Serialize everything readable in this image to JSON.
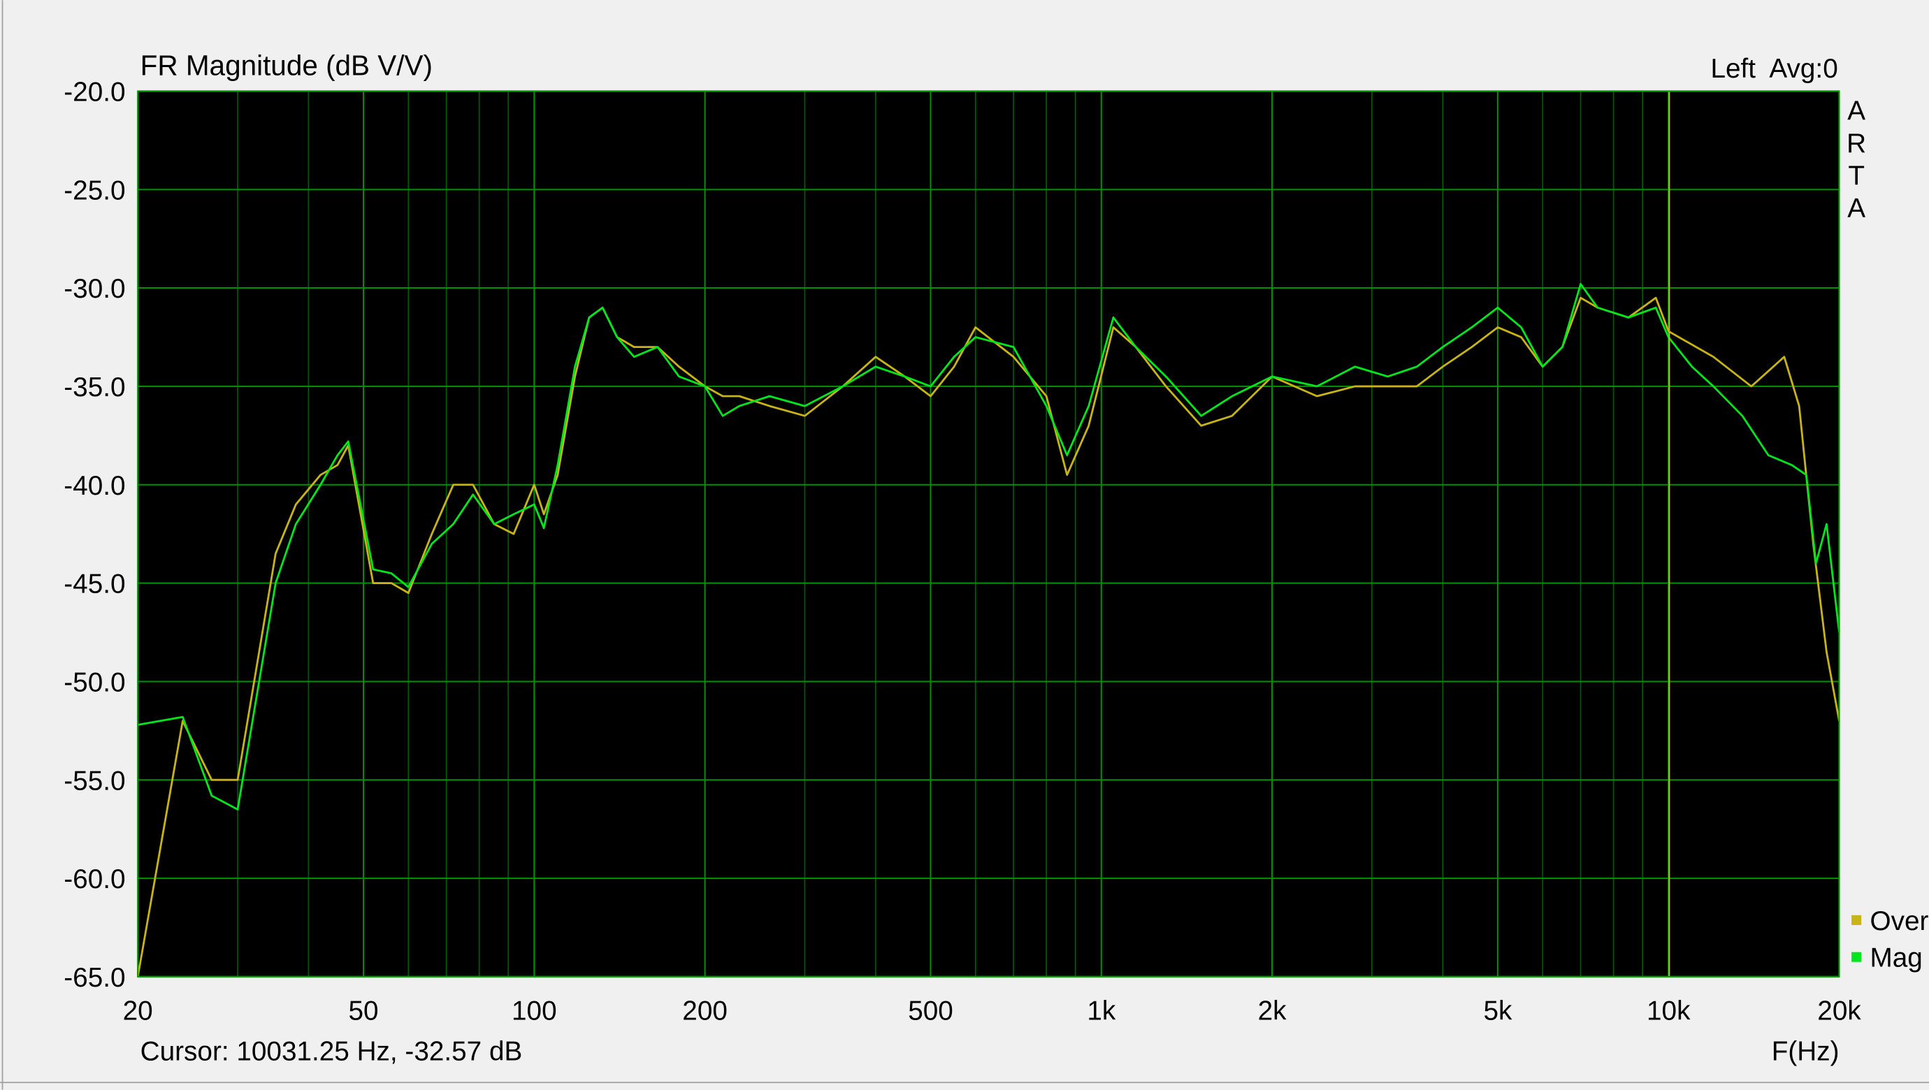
{
  "chart_data": {
    "type": "line",
    "title": "FR Magnitude (dB V/V)",
    "channel_info": "Left  Avg:0",
    "branding": "ARTA",
    "x_label": "F(Hz)",
    "cursor": {
      "value": 10031.25,
      "label": "Cursor: 10031.25 Hz, -32.57 dB"
    },
    "xscale": "log",
    "grid": true,
    "legend": "bottom-right",
    "xlim": [
      20,
      20000
    ],
    "ylim": [
      -65,
      -20
    ],
    "xticks": [
      20,
      50,
      100,
      200,
      500,
      {
        "value": 1000,
        "label": "1k"
      },
      {
        "value": 2000,
        "label": "2k"
      },
      {
        "value": 5000,
        "label": "5k"
      },
      {
        "value": 10000,
        "label": "10k"
      },
      {
        "value": 20000,
        "label": "20k"
      }
    ],
    "xminor": [
      30,
      40,
      60,
      70,
      80,
      90,
      300,
      400,
      600,
      700,
      800,
      900,
      3000,
      4000,
      6000,
      7000,
      8000,
      9000
    ],
    "yticks": [
      {
        "value": -20,
        "label": "-20.0"
      },
      {
        "value": -25,
        "label": "-25.0"
      },
      {
        "value": -30,
        "label": "-30.0"
      },
      {
        "value": -35,
        "label": "-35.0"
      },
      {
        "value": -40,
        "label": "-40.0"
      },
      {
        "value": -45,
        "label": "-45.0"
      },
      {
        "value": -50,
        "label": "-50.0"
      },
      {
        "value": -55,
        "label": "-55.0"
      },
      {
        "value": -60,
        "label": "-60.0"
      },
      {
        "value": -65,
        "label": "-65.0"
      }
    ],
    "series": [
      {
        "name": "Over",
        "color": "#c8b414",
        "x": [
          20,
          24,
          27,
          30,
          35,
          38,
          42,
          45,
          47,
          52,
          56,
          60,
          66,
          72,
          78,
          85,
          92,
          100,
          104,
          110,
          118,
          125,
          132,
          140,
          150,
          165,
          180,
          200,
          215,
          230,
          260,
          300,
          350,
          400,
          450,
          500,
          550,
          600,
          700,
          800,
          870,
          950,
          1050,
          1150,
          1300,
          1500,
          1700,
          2000,
          2400,
          2800,
          3200,
          3600,
          4000,
          4500,
          5000,
          5500,
          6000,
          6500,
          7000,
          7500,
          8500,
          9500,
          10000,
          12000,
          14000,
          16000,
          17000,
          18000,
          19000,
          20000
        ],
        "values": [
          -65,
          -52,
          -55,
          -55,
          -43.5,
          -41,
          -39.5,
          -39,
          -38,
          -45,
          -45,
          -45.5,
          -42.5,
          -40,
          -40,
          -42,
          -42.5,
          -40,
          -41.5,
          -39.5,
          -34.5,
          -31.5,
          -31,
          -32.5,
          -33,
          -33,
          -34,
          -35,
          -35.5,
          -35.5,
          -36,
          -36.5,
          -35,
          -33.5,
          -34.5,
          -35.5,
          -34,
          -32,
          -33.5,
          -35.5,
          -39.5,
          -37,
          -32,
          -33,
          -35,
          -37,
          -36.5,
          -34.5,
          -35.5,
          -35,
          -35,
          -35,
          -34,
          -33,
          -32,
          -32.5,
          -34,
          -33,
          -30.5,
          -31,
          -31.5,
          -30.5,
          -32.2,
          -33.5,
          -35,
          -33.5,
          -36,
          -43,
          -48.5,
          -52
        ]
      },
      {
        "name": "Mag",
        "color": "#00e61e",
        "x": [
          20,
          24,
          27,
          30,
          35,
          38,
          42,
          45,
          47,
          52,
          56,
          60,
          66,
          72,
          78,
          85,
          92,
          100,
          104,
          110,
          118,
          125,
          132,
          140,
          150,
          165,
          180,
          200,
          215,
          230,
          260,
          300,
          350,
          400,
          450,
          500,
          550,
          600,
          700,
          800,
          870,
          950,
          1050,
          1150,
          1300,
          1500,
          1700,
          2000,
          2400,
          2800,
          3200,
          3600,
          4000,
          4500,
          5000,
          5500,
          6000,
          6500,
          7000,
          7500,
          8500,
          9500,
          10000,
          11000,
          12000,
          13500,
          15000,
          16500,
          17500,
          18200,
          19000,
          20000
        ],
        "values": [
          -52.2,
          -51.8,
          -55.8,
          -56.5,
          -45,
          -42,
          -40,
          -38.5,
          -37.8,
          -44.3,
          -44.5,
          -45.2,
          -43,
          -42,
          -40.5,
          -42,
          -41.5,
          -41,
          -42.2,
          -39,
          -34,
          -31.5,
          -31,
          -32.5,
          -33.5,
          -33,
          -34.5,
          -35,
          -36.5,
          -36,
          -35.5,
          -36,
          -35,
          -34,
          -34.5,
          -35,
          -33.5,
          -32.5,
          -33,
          -36,
          -38.5,
          -36,
          -31.5,
          -33,
          -34.5,
          -36.5,
          -35.5,
          -34.5,
          -35,
          -34,
          -34.5,
          -34,
          -33,
          -32,
          -31,
          -32,
          -34,
          -33,
          -29.8,
          -31,
          -31.5,
          -31,
          -32.5,
          -34,
          -35,
          -36.5,
          -38.5,
          -39,
          -39.5,
          -44,
          -42,
          -47.5
        ]
      }
    ]
  }
}
